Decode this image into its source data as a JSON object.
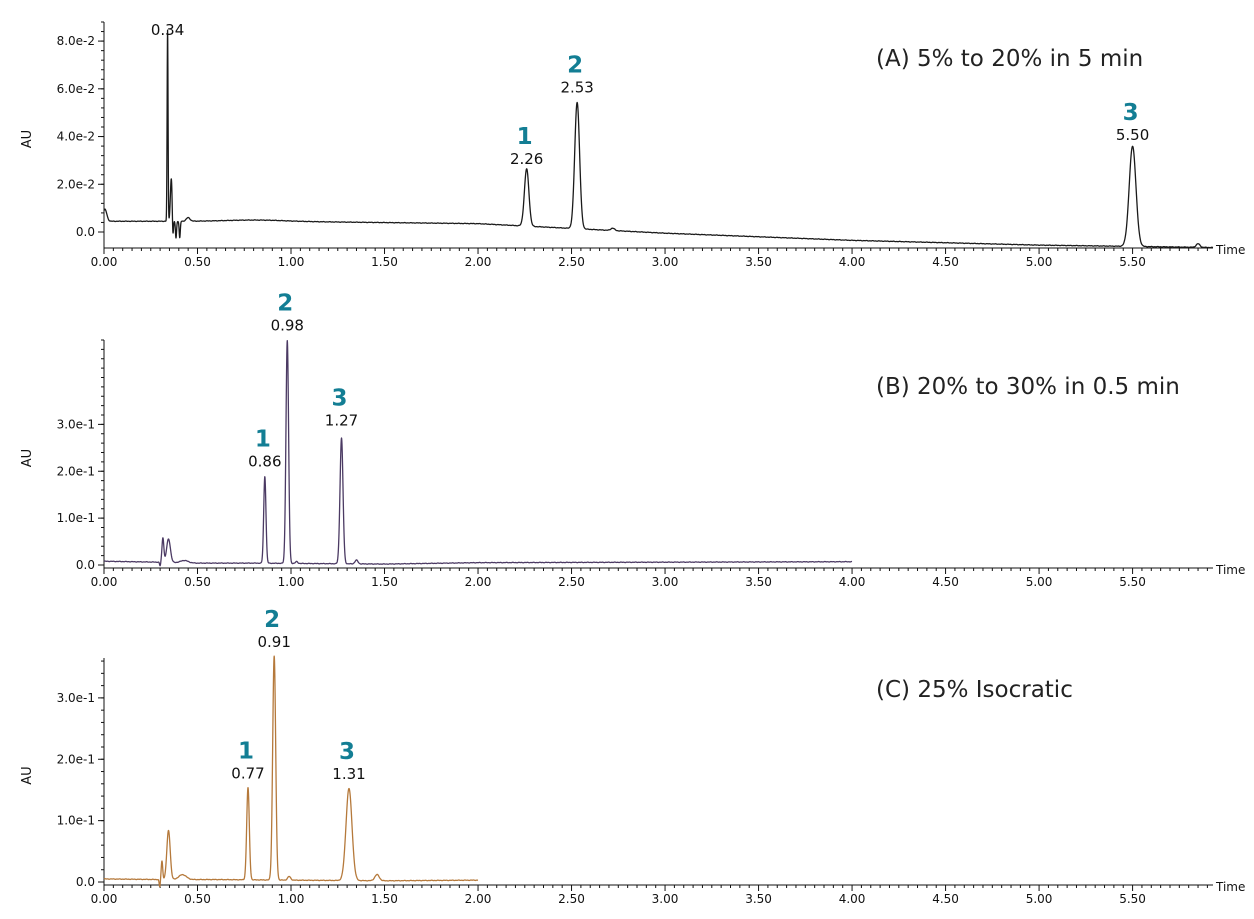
{
  "chart_data": [
    {
      "type": "line",
      "panel": "A",
      "condition_label": "(A) 5% to 20% in 5 min",
      "ylabel": "AU",
      "xlabel": "Time",
      "line_color": "#1a1a1a",
      "xlim": [
        0,
        5.93
      ],
      "ylim": [
        -0.006,
        0.088
      ],
      "x_ticks": [
        "0.00",
        "0.50",
        "1.00",
        "1.50",
        "2.00",
        "2.50",
        "3.00",
        "3.50",
        "4.00",
        "4.50",
        "5.00",
        "5.50"
      ],
      "y_ticks": [
        {
          "value": 0.0,
          "label": "0.0"
        },
        {
          "value": 0.02,
          "label": "2.0e-2"
        },
        {
          "value": 0.04,
          "label": "4.0e-2"
        },
        {
          "value": 0.06,
          "label": "6.0e-2"
        },
        {
          "value": 0.08,
          "label": "8.0e-2"
        }
      ],
      "x_end": 5.93,
      "baseline": [
        [
          0.0,
          0.0045
        ],
        [
          0.34,
          0.0045
        ],
        [
          0.9,
          0.0045
        ],
        [
          2.0,
          0.0035
        ],
        [
          3.0,
          -0.0005
        ],
        [
          4.0,
          -0.0035
        ],
        [
          5.0,
          -0.0055
        ],
        [
          5.93,
          -0.0065
        ]
      ],
      "peaks": [
        {
          "t": 0.005,
          "h": 0.005,
          "w": 0.01
        },
        {
          "t": 0.34,
          "h": 0.08,
          "w": 0.0025
        },
        {
          "t": 0.36,
          "h": 0.018,
          "w": 0.005
        },
        {
          "t": 0.45,
          "h": 0.0015,
          "w": 0.01
        },
        {
          "t": 0.8,
          "h": 0.0005,
          "w": 0.15
        },
        {
          "t": 2.26,
          "h": 0.024,
          "w": 0.012
        },
        {
          "t": 2.53,
          "h": 0.053,
          "w": 0.013
        },
        {
          "t": 2.72,
          "h": 0.001,
          "w": 0.01
        },
        {
          "t": 5.5,
          "h": 0.042,
          "w": 0.018
        },
        {
          "t": 5.85,
          "h": 0.0015,
          "w": 0.01
        }
      ],
      "dips": [
        {
          "t": 0.368,
          "d": 0.009,
          "w": 0.003
        },
        {
          "t": 0.385,
          "d": 0.007,
          "w": 0.003
        },
        {
          "t": 0.405,
          "d": 0.007,
          "w": 0.003
        }
      ],
      "annotations": [
        {
          "peak": "",
          "time": "0.34",
          "t": 0.34,
          "y": 0.08
        },
        {
          "peak": "1",
          "time": "2.26",
          "t": 2.26,
          "y": 0.026
        },
        {
          "peak": "2",
          "time": "2.53",
          "t": 2.53,
          "y": 0.056
        },
        {
          "peak": "3",
          "time": "5.50",
          "t": 5.5,
          "y": 0.036
        }
      ]
    },
    {
      "type": "line",
      "panel": "B",
      "condition_label": "(B) 20% to 30% in 0.5 min",
      "ylabel": "AU",
      "xlabel": "Time",
      "line_color": "#4b3a63",
      "xlim": [
        0,
        5.93
      ],
      "ylim": [
        -0.01,
        0.48
      ],
      "x_ticks": [
        "0.00",
        "0.50",
        "1.00",
        "1.50",
        "2.00",
        "2.50",
        "3.00",
        "3.50",
        "4.00",
        "4.50",
        "5.00",
        "5.50"
      ],
      "y_ticks": [
        {
          "value": 0.0,
          "label": "0.0"
        },
        {
          "value": 0.1,
          "label": "1.0e-1"
        },
        {
          "value": 0.2,
          "label": "2.0e-1"
        },
        {
          "value": 0.3,
          "label": "3.0e-1"
        }
      ],
      "x_end": 4.0,
      "baseline": [
        [
          0.0,
          0.008
        ],
        [
          0.3,
          0.006
        ],
        [
          0.5,
          0.004
        ],
        [
          0.8,
          0.004
        ],
        [
          1.5,
          0.002
        ],
        [
          2.0,
          0.005
        ],
        [
          3.0,
          0.006
        ],
        [
          4.0,
          0.007
        ]
      ],
      "peaks": [
        {
          "t": 0.315,
          "h": 0.052,
          "w": 0.005
        },
        {
          "t": 0.345,
          "h": 0.05,
          "w": 0.01
        },
        {
          "t": 0.43,
          "h": 0.005,
          "w": 0.02
        },
        {
          "t": 0.86,
          "h": 0.185,
          "w": 0.006
        },
        {
          "t": 0.98,
          "h": 0.475,
          "w": 0.007
        },
        {
          "t": 1.03,
          "h": 0.004,
          "w": 0.006
        },
        {
          "t": 1.27,
          "h": 0.268,
          "w": 0.008
        },
        {
          "t": 1.35,
          "h": 0.008,
          "w": 0.008
        }
      ],
      "dips": [
        {
          "t": 0.3,
          "d": 0.008,
          "w": 0.003
        }
      ],
      "annotations": [
        {
          "peak": "1",
          "time": "0.86",
          "t": 0.86,
          "y": 0.197
        },
        {
          "peak": "2",
          "time": "0.98",
          "t": 0.98,
          "y": 0.488
        },
        {
          "peak": "3",
          "time": "1.27",
          "t": 1.27,
          "y": 0.285
        }
      ]
    },
    {
      "type": "line",
      "panel": "C",
      "condition_label": "(C) 25% Isocratic",
      "ylabel": "AU",
      "xlabel": "Time",
      "line_color": "#b5793b",
      "xlim": [
        0,
        5.93
      ],
      "ylim": [
        -0.01,
        0.365
      ],
      "x_ticks": [
        "0.00",
        "0.50",
        "1.00",
        "1.50",
        "2.00",
        "2.50",
        "3.00",
        "3.50",
        "4.00",
        "4.50",
        "5.00",
        "5.50"
      ],
      "y_ticks": [
        {
          "value": 0.0,
          "label": "0.0"
        },
        {
          "value": 0.1,
          "label": "1.0e-1"
        },
        {
          "value": 0.2,
          "label": "2.0e-1"
        },
        {
          "value": 0.3,
          "label": "3.0e-1"
        }
      ],
      "x_end": 2.0,
      "baseline": [
        [
          0.0,
          0.005
        ],
        [
          0.3,
          0.004
        ],
        [
          0.6,
          0.004
        ],
        [
          1.0,
          0.003
        ],
        [
          1.5,
          0.002
        ],
        [
          2.0,
          0.003
        ]
      ],
      "peaks": [
        {
          "t": 0.31,
          "h": 0.03,
          "w": 0.004
        },
        {
          "t": 0.345,
          "h": 0.08,
          "w": 0.009
        },
        {
          "t": 0.42,
          "h": 0.008,
          "w": 0.02
        },
        {
          "t": 0.77,
          "h": 0.15,
          "w": 0.007
        },
        {
          "t": 0.91,
          "h": 0.365,
          "w": 0.008
        },
        {
          "t": 0.99,
          "h": 0.006,
          "w": 0.008
        },
        {
          "t": 1.31,
          "h": 0.15,
          "w": 0.016
        },
        {
          "t": 1.46,
          "h": 0.01,
          "w": 0.012
        }
      ],
      "dips": [
        {
          "t": 0.298,
          "d": 0.012,
          "w": 0.003
        }
      ],
      "annotations": [
        {
          "peak": "1",
          "time": "0.77",
          "t": 0.77,
          "y": 0.159
        },
        {
          "peak": "2",
          "time": "0.91",
          "t": 0.91,
          "y": 0.373
        },
        {
          "peak": "3",
          "time": "1.31",
          "t": 1.31,
          "y": 0.158
        }
      ]
    }
  ],
  "colors": {
    "peak_number": "#137e94",
    "axis": "#111111",
    "background": "#ffffff"
  }
}
